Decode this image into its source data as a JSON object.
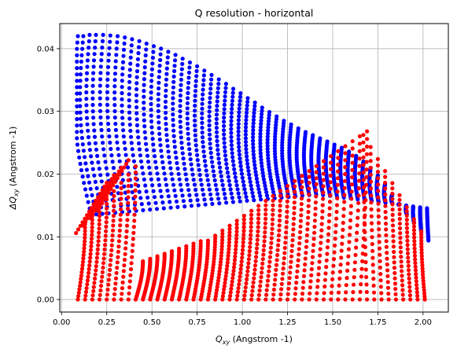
{
  "chart_data": {
    "type": "scatter",
    "title": "Q resolution - horizontal",
    "xlabel": {
      "symbol": "Q",
      "subscript": "xy",
      "unit": " (Angstrom -1)"
    },
    "ylabel": {
      "symbol": "ΔQ",
      "subscript": "xy",
      "unit": " (Angstrom -1)"
    },
    "xlim": [
      -0.01,
      2.14
    ],
    "ylim": [
      -0.002,
      0.044
    ],
    "xticks": [
      0.0,
      0.25,
      0.5,
      0.75,
      1.0,
      1.25,
      1.5,
      1.75,
      2.0
    ],
    "xtick_labels": [
      "0.00",
      "0.25",
      "0.50",
      "0.75",
      "1.00",
      "1.25",
      "1.50",
      "1.75",
      "2.00"
    ],
    "yticks": [
      0.0,
      0.01,
      0.02,
      0.03,
      0.04
    ],
    "ytick_labels": [
      "0.00",
      "0.01",
      "0.02",
      "0.03",
      "0.04"
    ],
    "grid": true,
    "series": [
      {
        "color": "#0000ff",
        "arcs": [
          [
            0.09,
            0.042
          ],
          [
            0.09,
            0.036
          ],
          [
            0.1,
            0.03
          ],
          [
            0.14,
            0.024
          ],
          [
            0.2,
            0.0185
          ],
          [
            0.26,
            0.0155
          ],
          [
            0.3,
            0.0135
          ]
        ],
        "description_points": [
          [
            0.09,
            0.042
          ],
          [
            0.12,
            0.042
          ],
          [
            0.155,
            0.0422
          ],
          [
            0.19,
            0.0422
          ],
          [
            0.23,
            0.0422
          ],
          [
            0.27,
            0.0421
          ],
          [
            0.31,
            0.042
          ],
          [
            0.35,
            0.0418
          ],
          [
            0.39,
            0.0415
          ],
          [
            0.43,
            0.0412
          ],
          [
            0.47,
            0.0408
          ],
          [
            0.51,
            0.0404
          ],
          [
            0.55,
            0.04
          ],
          [
            0.59,
            0.0395
          ],
          [
            0.63,
            0.039
          ],
          [
            0.67,
            0.0384
          ],
          [
            0.71,
            0.0378
          ],
          [
            0.75,
            0.0372
          ],
          [
            0.79,
            0.0365
          ],
          [
            0.83,
            0.0358
          ],
          [
            0.87,
            0.0351
          ],
          [
            0.91,
            0.0344
          ],
          [
            0.95,
            0.0336
          ],
          [
            0.99,
            0.0329
          ],
          [
            1.03,
            0.0321
          ],
          [
            1.07,
            0.0314
          ],
          [
            1.11,
            0.0306
          ],
          [
            1.15,
            0.0299
          ],
          [
            1.19,
            0.0292
          ],
          [
            1.23,
            0.0285
          ],
          [
            1.27,
            0.0279
          ],
          [
            1.31,
            0.0273
          ],
          [
            1.35,
            0.0267
          ],
          [
            1.39,
            0.0262
          ],
          [
            1.43,
            0.0257
          ],
          [
            1.47,
            0.0252
          ],
          [
            1.51,
            0.0247
          ],
          [
            1.55,
            0.0242
          ],
          [
            1.59,
            0.0236
          ],
          [
            1.63,
            0.0229
          ],
          [
            1.67,
            0.022
          ],
          [
            1.71,
            0.021
          ],
          [
            1.75,
            0.0198
          ],
          [
            1.79,
            0.0184
          ],
          [
            1.83,
            0.0168
          ],
          [
            1.87,
            0.0152
          ],
          [
            1.91,
            0.0136
          ],
          [
            1.95,
            0.0122
          ],
          [
            1.99,
            0.0108
          ],
          [
            2.03,
            0.0094
          ]
        ]
      },
      {
        "color": "#ff0000",
        "description_points": [
          [
            0.37,
            0.0222
          ],
          [
            0.33,
            0.021
          ],
          [
            0.3,
            0.0195
          ],
          [
            0.26,
            0.018
          ],
          [
            0.23,
            0.0165
          ],
          [
            0.2,
            0.015
          ],
          [
            0.17,
            0.014
          ],
          [
            0.15,
            0.0125
          ],
          [
            0.13,
            0.011
          ],
          [
            0.11,
            0.009
          ],
          [
            0.1,
            0.006
          ],
          [
            0.095,
            0.003
          ],
          [
            0.09,
            0.0
          ],
          [
            1.665,
            0.0272
          ],
          [
            1.7,
            0.0265
          ],
          [
            1.74,
            0.0255
          ],
          [
            1.78,
            0.0245
          ],
          [
            1.82,
            0.023
          ],
          [
            1.86,
            0.0212
          ],
          [
            1.9,
            0.019
          ],
          [
            1.94,
            0.016
          ],
          [
            1.96,
            0.013
          ],
          [
            1.98,
            0.01
          ],
          [
            2.0,
            0.006
          ],
          [
            2.02,
            0.003
          ],
          [
            2.04,
            0.0
          ]
        ]
      }
    ]
  }
}
